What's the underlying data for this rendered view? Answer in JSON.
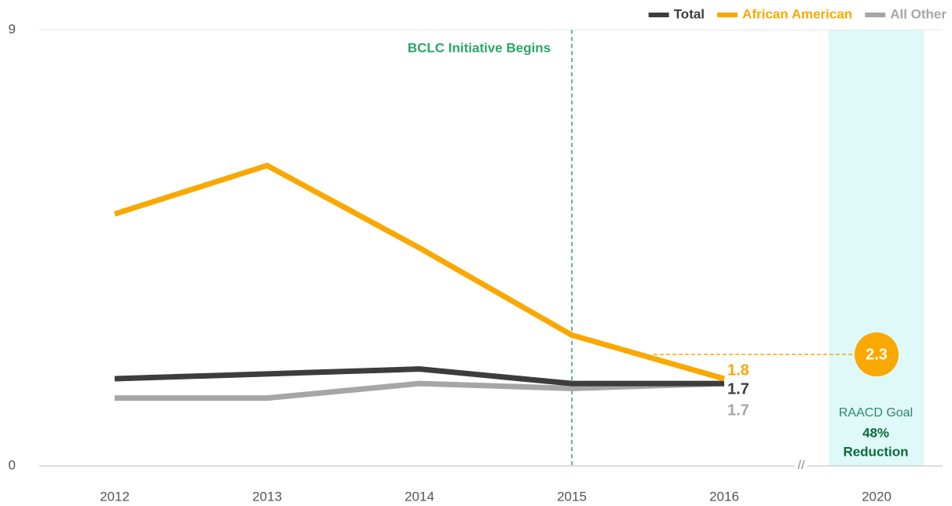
{
  "chart_data": {
    "type": "line",
    "categories": [
      "2012",
      "2013",
      "2014",
      "2015",
      "2016",
      "2020"
    ],
    "series": [
      {
        "name": "Total",
        "color": "#3d3d3d",
        "values": [
          1.8,
          1.9,
          2.0,
          1.7,
          1.7,
          null
        ]
      },
      {
        "name": "African American",
        "color": "#f9a800",
        "values": [
          5.2,
          6.2,
          4.5,
          2.7,
          1.8,
          null
        ]
      },
      {
        "name": "All Other",
        "color": "#a6a6a6",
        "values": [
          1.4,
          1.4,
          1.7,
          1.6,
          1.7,
          null
        ]
      }
    ],
    "ylim": [
      0,
      9
    ],
    "yticks": [
      0,
      9
    ],
    "annotation": "BCLC Initiative Begins",
    "goal": {
      "value": 2.3,
      "label": "RAACD Goal",
      "percent": "48%",
      "text": "Reduction"
    },
    "legend": "top-right"
  }
}
